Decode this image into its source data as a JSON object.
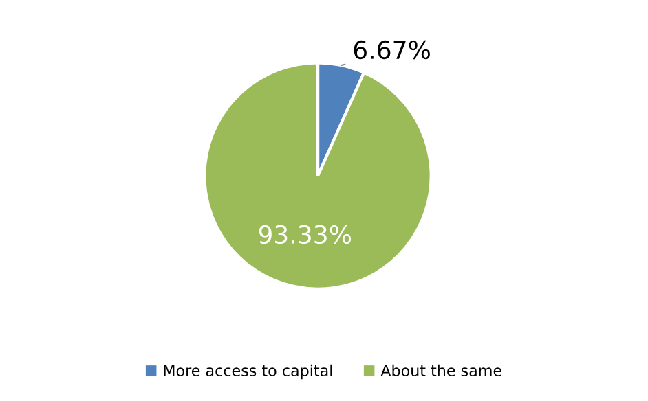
{
  "chart_data": {
    "type": "pie",
    "categories": [
      "More access to capital",
      "About the same"
    ],
    "values": [
      6.67,
      93.33
    ],
    "colors": [
      "#4f81bd",
      "#9bbb59"
    ],
    "value_labels": [
      "6.67%",
      "93.33%"
    ],
    "legend": "bottom"
  }
}
